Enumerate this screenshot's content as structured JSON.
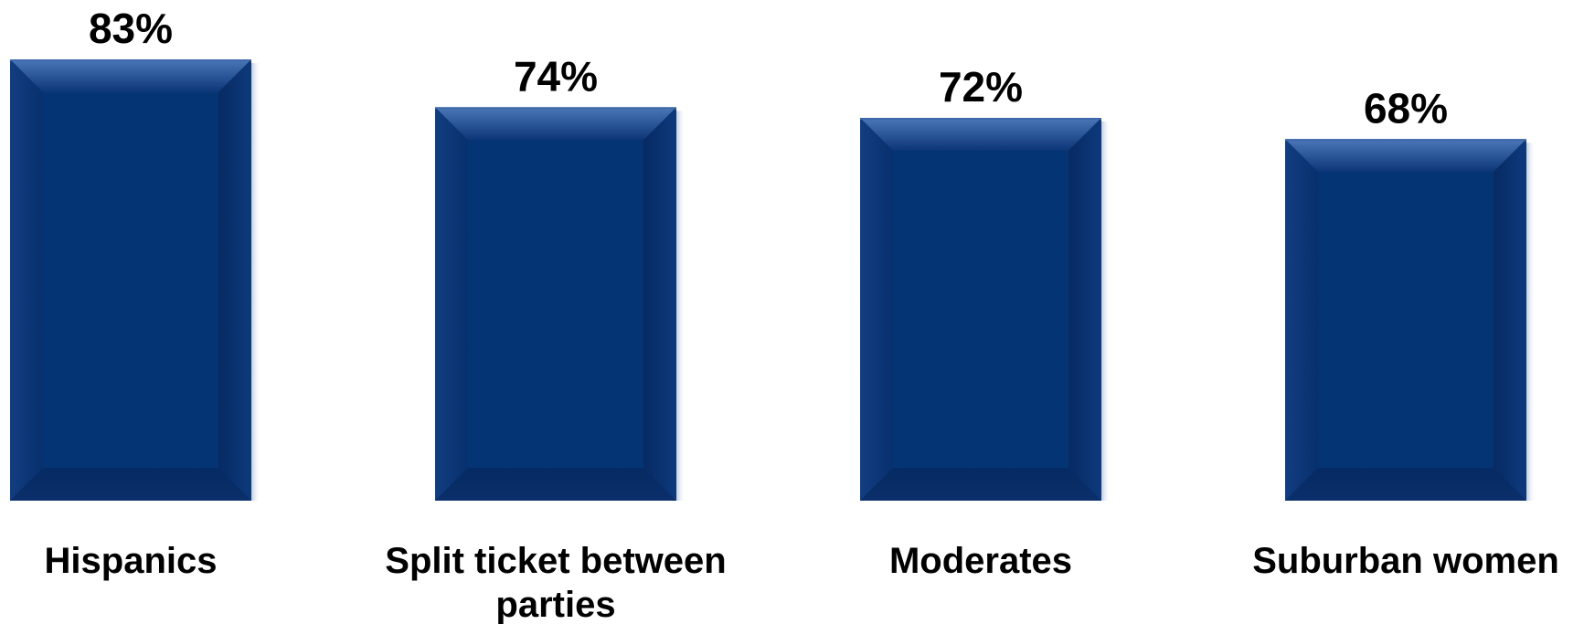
{
  "chart_data": {
    "type": "bar",
    "categories": [
      "Hispanics",
      "Split ticket between parties",
      "Moderates",
      "Suburban women"
    ],
    "category_lines": [
      [
        "Hispanics"
      ],
      [
        "Split ticket between",
        "parties"
      ],
      [
        "Moderates"
      ],
      [
        "Suburban women"
      ]
    ],
    "values": [
      83,
      74,
      72,
      68
    ],
    "value_labels": [
      "83%",
      "74%",
      "72%",
      "68%"
    ],
    "ylim": [
      0,
      83
    ],
    "grid": false,
    "legend": "none",
    "colors": {
      "bar_fill": "#0b2f6b",
      "bar_center": "#053474",
      "bar_edge_light": "#3f69aa",
      "bar_edge_dark": "#082452",
      "label": "#000000"
    }
  }
}
